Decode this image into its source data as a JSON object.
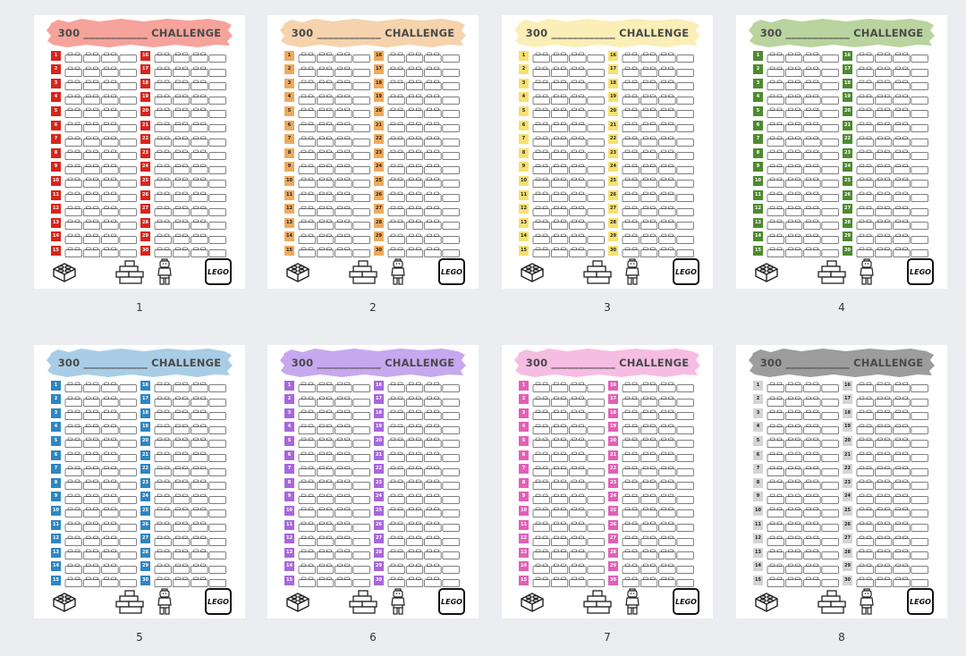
{
  "banner_text": "300 ____________ CHALLENGE",
  "logo_text": "LEGO",
  "left_numbers": [
    "1",
    "2",
    "3",
    "4",
    "5",
    "6",
    "7",
    "8",
    "9",
    "10",
    "11",
    "12",
    "13",
    "14",
    "15"
  ],
  "right_numbers": [
    "16",
    "17",
    "18",
    "19",
    "20",
    "21",
    "22",
    "23",
    "24",
    "25",
    "26",
    "27",
    "28",
    "29",
    "30"
  ],
  "icons": [
    "lego-brick-icon",
    "stacked-bricks-icon",
    "minifigure-icon",
    "lego-logo-icon"
  ],
  "pages": [
    {
      "label": "1",
      "banner_color": "#f5a39b",
      "tag_color": "#d7251c",
      "tag_text_color": "#ffffff"
    },
    {
      "label": "2",
      "banner_color": "#f5d3ad",
      "tag_color": "#eeaa5c",
      "tag_text_color": "#222222"
    },
    {
      "label": "3",
      "banner_color": "#fbefb7",
      "tag_color": "#f7e16e",
      "tag_text_color": "#222222"
    },
    {
      "label": "4",
      "banner_color": "#b9d49e",
      "tag_color": "#4e8a2e",
      "tag_text_color": "#ffffff"
    },
    {
      "label": "5",
      "banner_color": "#a9cde6",
      "tag_color": "#2e86c2",
      "tag_text_color": "#ffffff"
    },
    {
      "label": "6",
      "banner_color": "#c6a8ef",
      "tag_color": "#a866dc",
      "tag_text_color": "#ffffff"
    },
    {
      "label": "7",
      "banner_color": "#f6bde2",
      "tag_color": "#e35fb7",
      "tag_text_color": "#ffffff"
    },
    {
      "label": "8",
      "banner_color": "#9d9d9d",
      "tag_color": "#d4d4d4",
      "tag_text_color": "#222222"
    }
  ]
}
